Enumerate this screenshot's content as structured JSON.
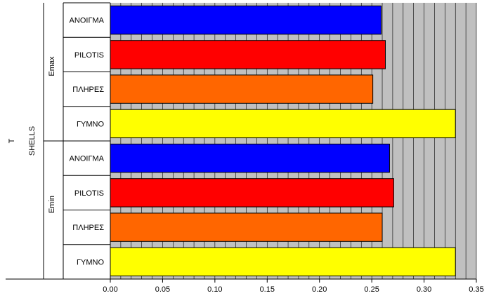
{
  "chart_data": {
    "type": "bar",
    "orientation": "horizontal",
    "xlim": [
      0,
      0.35
    ],
    "x_ticks": [
      "0.00",
      "0.05",
      "0.10",
      "0.15",
      "0.20",
      "0.25",
      "0.30",
      "0.35"
    ],
    "minor_grid_step": 0.01,
    "grid": true,
    "plot_background": "#c0c0c0",
    "group_labels": {
      "outer": "T",
      "middle": "SHELLS",
      "inner": [
        "Emax",
        "Emin"
      ]
    },
    "categories": [
      {
        "group": "Emax",
        "label": "ΑΝΟΙΓΜΑ",
        "value": 0.259,
        "color": "#0000ff"
      },
      {
        "group": "Emax",
        "label": "PILOTIS",
        "value": 0.263,
        "color": "#ff0000"
      },
      {
        "group": "Emax",
        "label": "ΠΛΗΡΕΣ",
        "value": 0.251,
        "color": "#ff6600"
      },
      {
        "group": "Emax",
        "label": "ΓΥΜΝΟ",
        "value": 0.33,
        "color": "#ffff00"
      },
      {
        "group": "Emin",
        "label": "ΑΝΟΙΓΜΑ",
        "value": 0.267,
        "color": "#0000ff"
      },
      {
        "group": "Emin",
        "label": "PILOTIS",
        "value": 0.271,
        "color": "#ff0000"
      },
      {
        "group": "Emin",
        "label": "ΠΛΗΡΕΣ",
        "value": 0.26,
        "color": "#ff6600"
      },
      {
        "group": "Emin",
        "label": "ΓΥΜΝΟ",
        "value": 0.33,
        "color": "#ffff00"
      }
    ]
  }
}
